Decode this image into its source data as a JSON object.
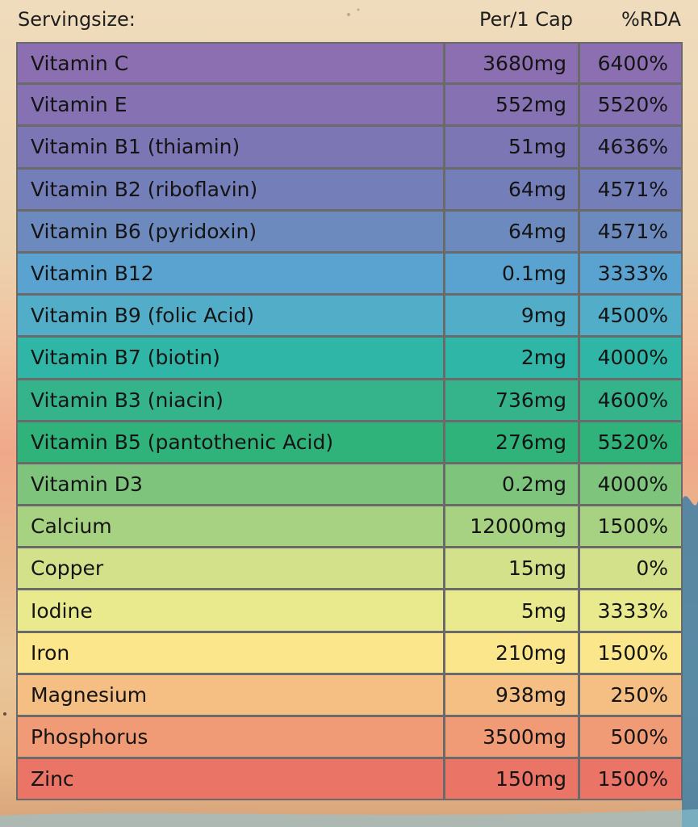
{
  "header": {
    "serving_label": "Servingsize:",
    "per_label": "Per/1 Cap",
    "rda_label": "%RDA"
  },
  "rows": [
    {
      "name": "Vitamin C",
      "per": "3680mg",
      "rda": "6400%",
      "color": "#8c6fb1"
    },
    {
      "name": "Vitamin E",
      "per": "552mg",
      "rda": "5520%",
      "color": "#8672b3"
    },
    {
      "name": "Vitamin B1 (thiamin)",
      "per": "51mg",
      "rda": "4636%",
      "color": "#7d76b5"
    },
    {
      "name": "Vitamin B2 (riboflavin)",
      "per": "64mg",
      "rda": "4571%",
      "color": "#747fba"
    },
    {
      "name": "Vitamin B6 (pyridoxin)",
      "per": "64mg",
      "rda": "4571%",
      "color": "#6d8abf"
    },
    {
      "name": "Vitamin B12",
      "per": "0.1mg",
      "rda": "3333%",
      "color": "#5aa2cf"
    },
    {
      "name": "Vitamin B9 (folic Acid)",
      "per": "9mg",
      "rda": "4500%",
      "color": "#52adc8"
    },
    {
      "name": "Vitamin B7 (biotin)",
      "per": "2mg",
      "rda": "4000%",
      "color": "#2fb6a7"
    },
    {
      "name": "Vitamin B3 (niacin)",
      "per": "736mg",
      "rda": "4600%",
      "color": "#35b38a"
    },
    {
      "name": "Vitamin B5 (pantothenic Acid)",
      "per": "276mg",
      "rda": "5520%",
      "color": "#2fb37b"
    },
    {
      "name": "Vitamin D3",
      "per": "0.2mg",
      "rda": "4000%",
      "color": "#7ec47d"
    },
    {
      "name": "Calcium",
      "per": "12000mg",
      "rda": "1500%",
      "color": "#a6d282"
    },
    {
      "name": "Copper",
      "per": "15mg",
      "rda": "0%",
      "color": "#d2e18a"
    },
    {
      "name": "Iodine",
      "per": "5mg",
      "rda": "3333%",
      "color": "#e9e98e"
    },
    {
      "name": "Iron",
      "per": "210mg",
      "rda": "1500%",
      "color": "#fbe68c"
    },
    {
      "name": "Magnesium",
      "per": "938mg",
      "rda": "250%",
      "color": "#f5be83"
    },
    {
      "name": "Phosphorus",
      "per": "3500mg",
      "rda": "500%",
      "color": "#f19b76"
    },
    {
      "name": "Zinc",
      "per": "150mg",
      "rda": "1500%",
      "color": "#ea7466"
    }
  ]
}
